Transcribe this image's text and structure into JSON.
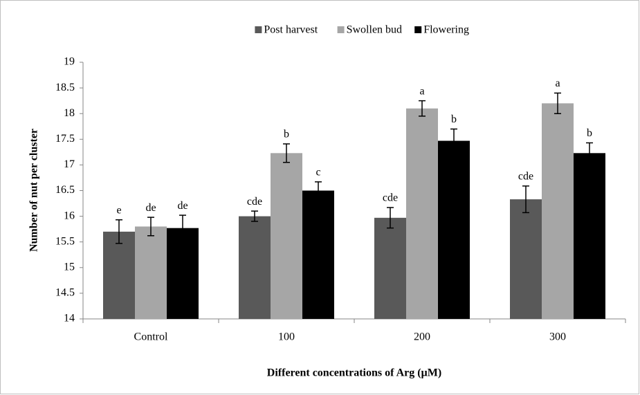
{
  "chart_data": {
    "type": "bar",
    "x_label": "Different concentrations of Arg (µM)",
    "y_label": "Number of nut  per cluster",
    "categories": [
      "Control",
      "100",
      "200",
      "300"
    ],
    "series": [
      {
        "name": "Post harvest",
        "color": "#595959",
        "values": [
          15.7,
          16.0,
          15.97,
          16.33
        ],
        "errors": [
          0.23,
          0.1,
          0.2,
          0.26
        ],
        "letters": [
          "e",
          "cde",
          "cde",
          "cde"
        ]
      },
      {
        "name": "Swollen bud",
        "color": "#a6a6a6",
        "values": [
          15.8,
          17.23,
          18.1,
          18.2
        ],
        "errors": [
          0.18,
          0.18,
          0.15,
          0.2
        ],
        "letters": [
          "de",
          "b",
          "a",
          "a"
        ]
      },
      {
        "name": "Flowering",
        "color": "#000000",
        "values": [
          15.77,
          16.5,
          17.47,
          17.23
        ],
        "errors": [
          0.25,
          0.17,
          0.23,
          0.2
        ],
        "letters": [
          "de",
          "c",
          "b",
          "b"
        ]
      }
    ],
    "ylim": [
      14,
      19
    ],
    "yticks": [
      14,
      14.5,
      15,
      15.5,
      16,
      16.5,
      17,
      17.5,
      18,
      18.5,
      19
    ],
    "legend": "top"
  }
}
